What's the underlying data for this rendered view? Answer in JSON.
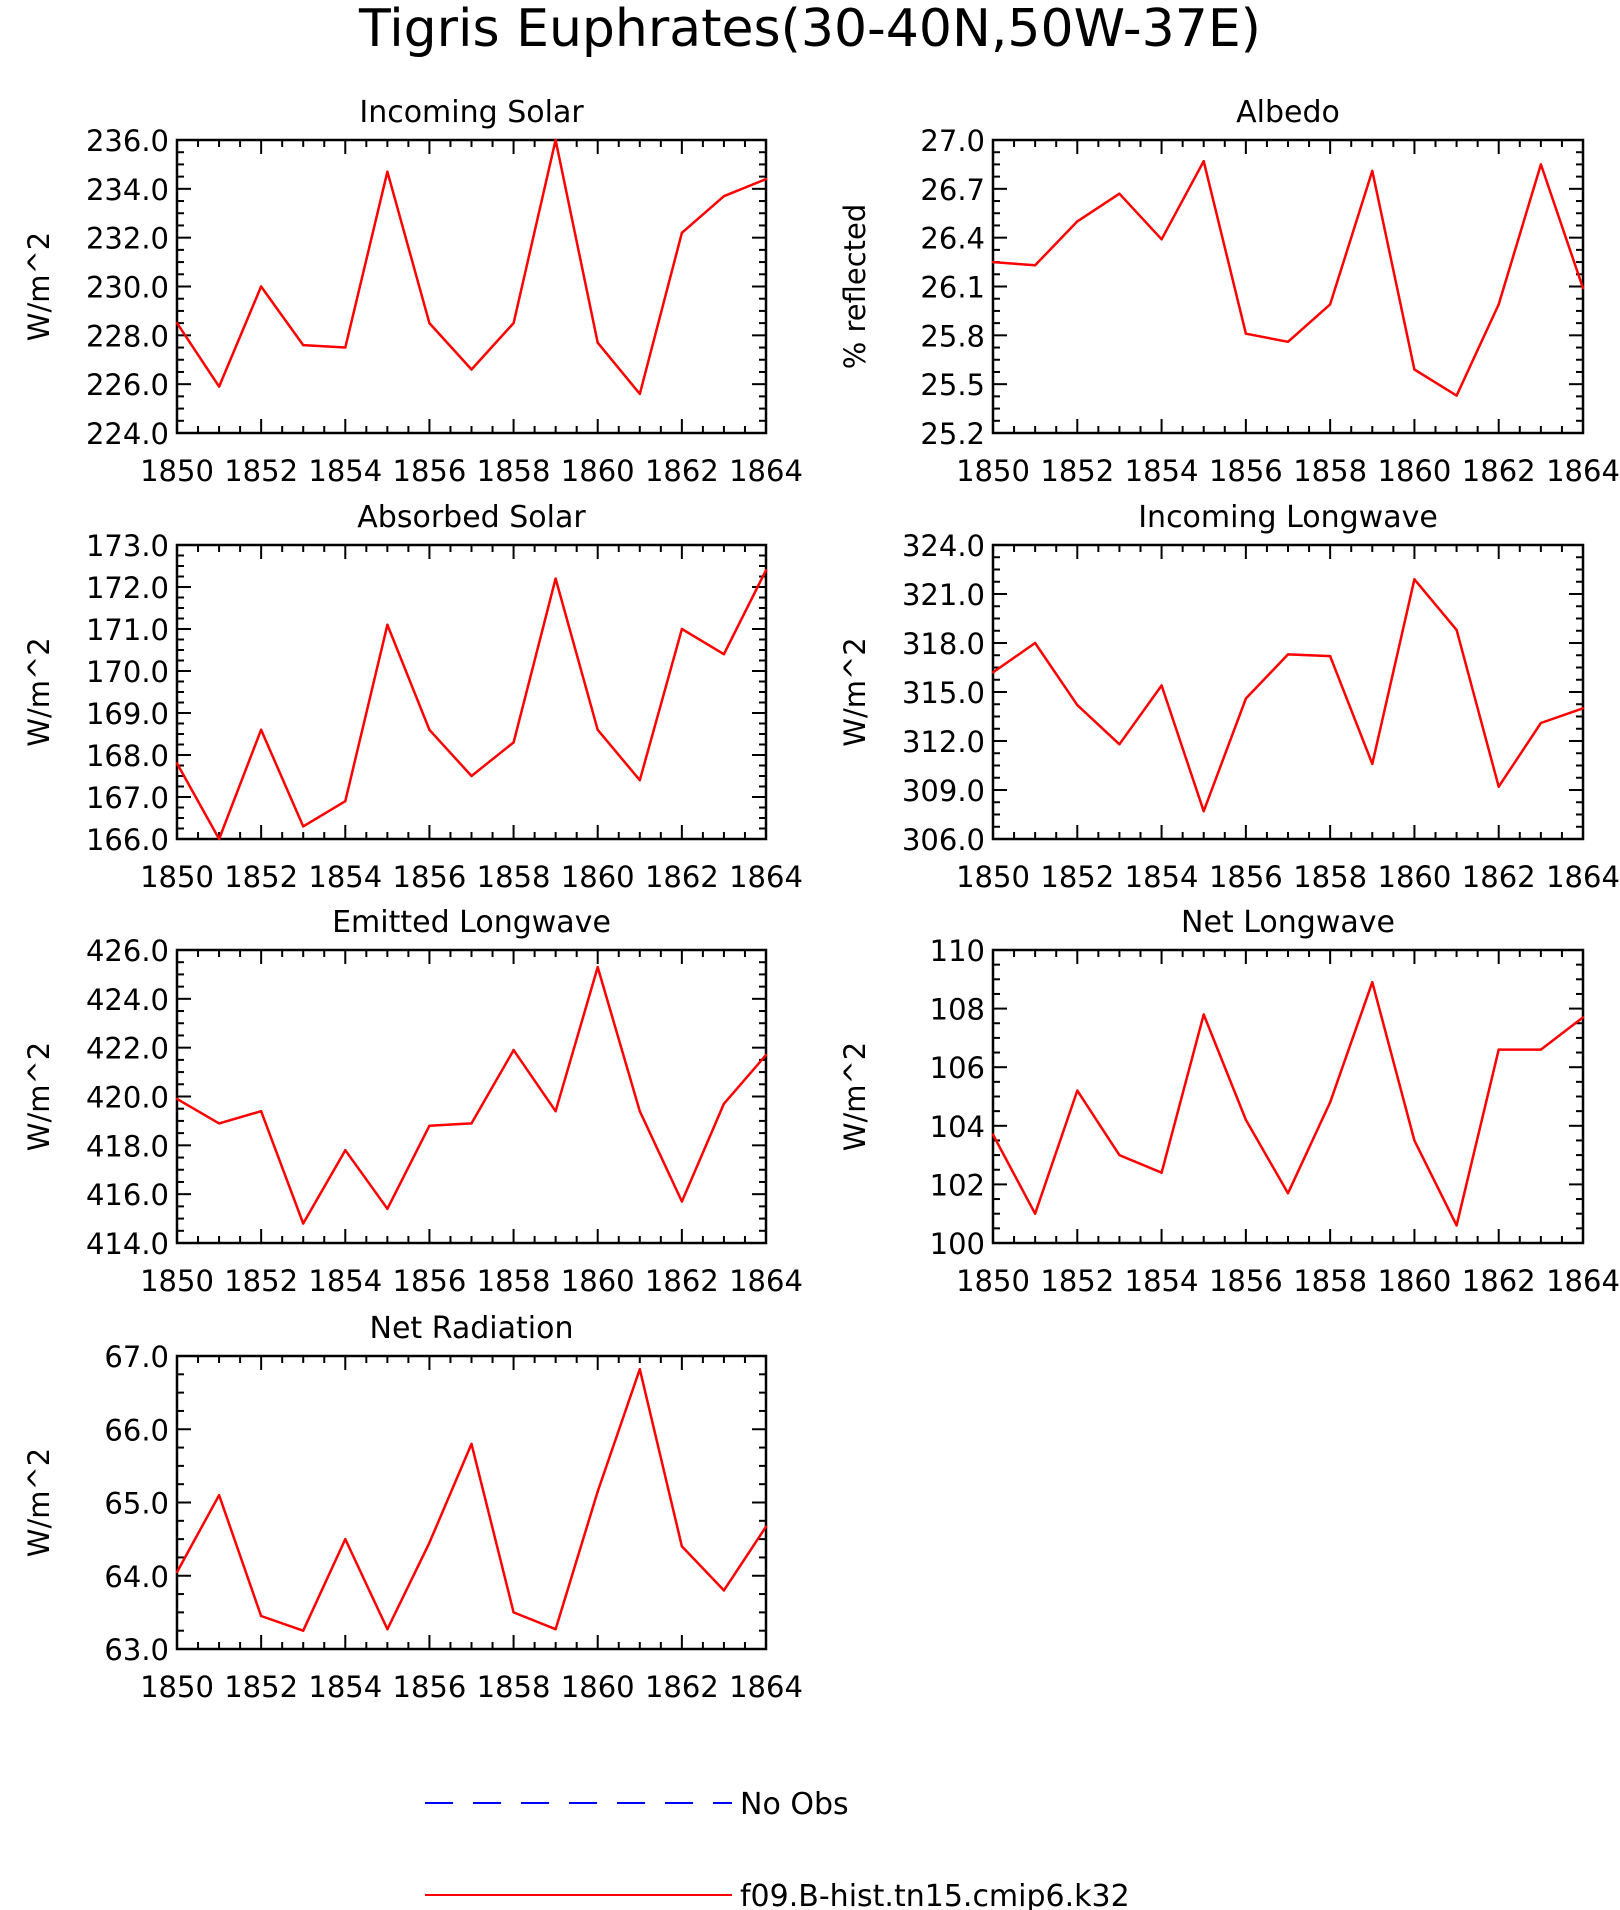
{
  "figure": {
    "title": "Tigris Euphrates(30-40N,50W-37E)"
  },
  "legend": {
    "position": "bottom-center",
    "entries": [
      {
        "label": "No Obs",
        "color": "#0000ff",
        "style": "dashed"
      },
      {
        "label": "f09.B-hist.tn15.cmip6.k32",
        "color": "#ff0000",
        "style": "solid"
      }
    ]
  },
  "colors": {
    "series": "#ff0000",
    "axes": "#000000"
  },
  "chart_data": [
    {
      "type": "line",
      "title": "Incoming Solar",
      "xlabel": "",
      "ylabel": "W/m^2",
      "xlim": [
        1850,
        1864
      ],
      "ylim": [
        224,
        236
      ],
      "xticks": [
        1850,
        1852,
        1854,
        1856,
        1858,
        1860,
        1862,
        1864
      ],
      "yticks": [
        224,
        226,
        228,
        230,
        232,
        234,
        236
      ],
      "ytick_labels": [
        "224.0",
        "226.0",
        "228.0",
        "230.0",
        "232.0",
        "234.0",
        "236.0"
      ],
      "grid": false,
      "x": [
        1850,
        1851,
        1852,
        1853,
        1854,
        1855,
        1856,
        1857,
        1858,
        1859,
        1860,
        1861,
        1862,
        1863,
        1864
      ],
      "series": [
        {
          "values": [
            228.5,
            225.9,
            230.0,
            227.6,
            227.5,
            234.7,
            228.5,
            226.6,
            228.5,
            236.0,
            227.7,
            225.6,
            232.2,
            233.7,
            234.4
          ]
        }
      ]
    },
    {
      "type": "line",
      "title": "Albedo",
      "xlabel": "",
      "ylabel": "% reflected",
      "xlim": [
        1850,
        1864
      ],
      "ylim": [
        25.2,
        27.0
      ],
      "xticks": [
        1850,
        1852,
        1854,
        1856,
        1858,
        1860,
        1862,
        1864
      ],
      "yticks": [
        25.2,
        25.5,
        25.8,
        26.1,
        26.4,
        26.7,
        27.0
      ],
      "ytick_labels": [
        "25.2",
        "25.5",
        "25.8",
        "26.1",
        "26.4",
        "26.7",
        "27.0"
      ],
      "grid": false,
      "x": [
        1850,
        1851,
        1852,
        1853,
        1854,
        1855,
        1856,
        1857,
        1858,
        1859,
        1860,
        1861,
        1862,
        1863,
        1864
      ],
      "series": [
        {
          "values": [
            26.25,
            26.23,
            26.5,
            26.67,
            26.39,
            26.87,
            25.81,
            25.76,
            25.99,
            26.81,
            25.59,
            25.43,
            25.99,
            26.85,
            26.09
          ]
        }
      ]
    },
    {
      "type": "line",
      "title": "Absorbed Solar",
      "xlabel": "",
      "ylabel": "W/m^2",
      "xlim": [
        1850,
        1864
      ],
      "ylim": [
        166,
        173
      ],
      "xticks": [
        1850,
        1852,
        1854,
        1856,
        1858,
        1860,
        1862,
        1864
      ],
      "yticks": [
        166,
        167,
        168,
        169,
        170,
        171,
        172,
        173
      ],
      "ytick_labels": [
        "166.0",
        "167.0",
        "168.0",
        "169.0",
        "170.0",
        "171.0",
        "172.0",
        "173.0"
      ],
      "grid": false,
      "x": [
        1850,
        1851,
        1852,
        1853,
        1854,
        1855,
        1856,
        1857,
        1858,
        1859,
        1860,
        1861,
        1862,
        1863,
        1864
      ],
      "series": [
        {
          "values": [
            167.8,
            166.0,
            168.6,
            166.3,
            166.9,
            171.1,
            168.6,
            167.5,
            168.3,
            172.2,
            168.6,
            167.4,
            171.0,
            170.4,
            172.4
          ]
        }
      ]
    },
    {
      "type": "line",
      "title": "Incoming Longwave",
      "xlabel": "",
      "ylabel": "W/m^2",
      "xlim": [
        1850,
        1864
      ],
      "ylim": [
        306,
        324
      ],
      "xticks": [
        1850,
        1852,
        1854,
        1856,
        1858,
        1860,
        1862,
        1864
      ],
      "yticks": [
        306,
        309,
        312,
        315,
        318,
        321,
        324
      ],
      "ytick_labels": [
        "306.0",
        "309.0",
        "312.0",
        "315.0",
        "318.0",
        "321.0",
        "324.0"
      ],
      "grid": false,
      "x": [
        1850,
        1851,
        1852,
        1853,
        1854,
        1855,
        1856,
        1857,
        1858,
        1859,
        1860,
        1861,
        1862,
        1863,
        1864
      ],
      "series": [
        {
          "values": [
            316.2,
            318.0,
            314.2,
            311.8,
            315.4,
            307.7,
            314.6,
            317.3,
            317.2,
            310.6,
            321.9,
            318.8,
            309.2,
            313.1,
            314.0
          ]
        }
      ]
    },
    {
      "type": "line",
      "title": "Emitted Longwave",
      "xlabel": "",
      "ylabel": "W/m^2",
      "xlim": [
        1850,
        1864
      ],
      "ylim": [
        414,
        426
      ],
      "xticks": [
        1850,
        1852,
        1854,
        1856,
        1858,
        1860,
        1862,
        1864
      ],
      "yticks": [
        414,
        416,
        418,
        420,
        422,
        424,
        426
      ],
      "ytick_labels": [
        "414.0",
        "416.0",
        "418.0",
        "420.0",
        "422.0",
        "424.0",
        "426.0"
      ],
      "grid": false,
      "x": [
        1850,
        1851,
        1852,
        1853,
        1854,
        1855,
        1856,
        1857,
        1858,
        1859,
        1860,
        1861,
        1862,
        1863,
        1864
      ],
      "series": [
        {
          "values": [
            419.9,
            418.9,
            419.4,
            414.8,
            417.8,
            415.4,
            418.8,
            418.9,
            421.9,
            419.4,
            425.3,
            419.4,
            415.7,
            419.7,
            421.7
          ]
        }
      ]
    },
    {
      "type": "line",
      "title": "Net Longwave",
      "xlabel": "",
      "ylabel": "W/m^2",
      "xlim": [
        1850,
        1864
      ],
      "ylim": [
        100,
        110
      ],
      "xticks": [
        1850,
        1852,
        1854,
        1856,
        1858,
        1860,
        1862,
        1864
      ],
      "yticks": [
        100,
        102,
        104,
        106,
        108,
        110
      ],
      "ytick_labels": [
        "100",
        "102",
        "104",
        "106",
        "108",
        "110"
      ],
      "grid": false,
      "x": [
        1850,
        1851,
        1852,
        1853,
        1854,
        1855,
        1856,
        1857,
        1858,
        1859,
        1860,
        1861,
        1862,
        1863,
        1864
      ],
      "series": [
        {
          "values": [
            103.7,
            101.0,
            105.2,
            103.0,
            102.4,
            107.8,
            104.2,
            101.7,
            104.8,
            108.9,
            103.5,
            100.6,
            106.6,
            106.6,
            107.7
          ]
        }
      ]
    },
    {
      "type": "line",
      "title": "Net Radiation",
      "xlabel": "",
      "ylabel": "W/m^2",
      "xlim": [
        1850,
        1864
      ],
      "ylim": [
        63,
        67
      ],
      "xticks": [
        1850,
        1852,
        1854,
        1856,
        1858,
        1860,
        1862,
        1864
      ],
      "yticks": [
        63,
        64,
        65,
        66,
        67
      ],
      "ytick_labels": [
        "63.0",
        "64.0",
        "65.0",
        "66.0",
        "67.0"
      ],
      "grid": false,
      "x": [
        1850,
        1851,
        1852,
        1853,
        1854,
        1855,
        1856,
        1857,
        1858,
        1859,
        1860,
        1861,
        1862,
        1863,
        1864
      ],
      "series": [
        {
          "values": [
            64.05,
            65.1,
            63.45,
            63.25,
            64.5,
            63.27,
            64.45,
            65.8,
            63.5,
            63.27,
            65.15,
            66.82,
            64.4,
            63.8,
            64.67
          ]
        }
      ]
    }
  ]
}
